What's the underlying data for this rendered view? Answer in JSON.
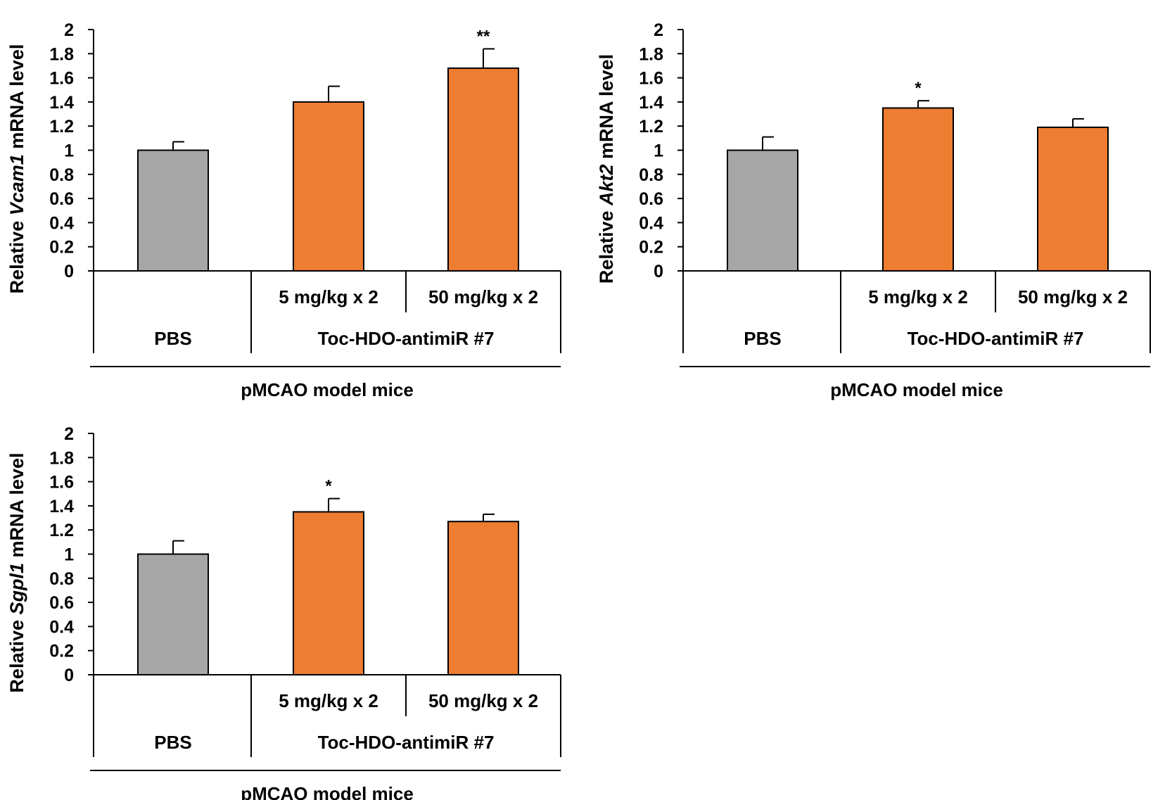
{
  "colors": {
    "control": "#a6a6a6",
    "treated": "#ed7d31",
    "axis": "#000000"
  },
  "chart_data": [
    {
      "type": "bar",
      "ylabel": {
        "prefix": "Relative ",
        "gene": "Vcam1",
        "suffix": " mRNA level"
      },
      "ylim": [
        0,
        2
      ],
      "yticks": [
        "0",
        "0.2",
        "0.4",
        "0.6",
        "0.8",
        "1",
        "1.2",
        "1.4",
        "1.6",
        "1.8",
        "2"
      ],
      "values": [
        1.0,
        1.4,
        1.68
      ],
      "errors": [
        0.07,
        0.13,
        0.16
      ],
      "significance": [
        "",
        "",
        "**"
      ],
      "dose_labels": [
        "",
        "5 mg/kg x 2",
        "50 mg/kg x 2"
      ],
      "group_labels": [
        "PBS",
        "Toc-HDO-antimiR #7"
      ],
      "footer": "pMCAO  model mice"
    },
    {
      "type": "bar",
      "ylabel": {
        "prefix": "Relative ",
        "gene": "Akt2",
        "suffix": " mRNA level"
      },
      "ylim": [
        0,
        2
      ],
      "yticks": [
        "0",
        "0.2",
        "0.4",
        "0.6",
        "0.8",
        "1",
        "1.2",
        "1.4",
        "1.6",
        "1.8",
        "2"
      ],
      "values": [
        1.0,
        1.35,
        1.19
      ],
      "errors": [
        0.11,
        0.06,
        0.07
      ],
      "significance": [
        "",
        "*",
        ""
      ],
      "dose_labels": [
        "",
        "5 mg/kg x 2",
        "50 mg/kg x 2"
      ],
      "group_labels": [
        "PBS",
        "Toc-HDO-antimiR #7"
      ],
      "footer": "pMCAO  model mice"
    },
    {
      "type": "bar",
      "ylabel": {
        "prefix": "Relative ",
        "gene": "Sgpl1",
        "suffix": " mRNA level"
      },
      "ylim": [
        0,
        2
      ],
      "yticks": [
        "0",
        "0.2",
        "0.4",
        "0.6",
        "0.8",
        "1",
        "1.2",
        "1.4",
        "1.6",
        "1.8",
        "2"
      ],
      "values": [
        1.0,
        1.35,
        1.27
      ],
      "errors": [
        0.11,
        0.11,
        0.06
      ],
      "significance": [
        "",
        "*",
        ""
      ],
      "dose_labels": [
        "",
        "5 mg/kg x 2",
        "50 mg/kg x 2"
      ],
      "group_labels": [
        "PBS",
        "Toc-HDO-antimiR #7"
      ],
      "footer": "pMCAO  model mice"
    }
  ]
}
